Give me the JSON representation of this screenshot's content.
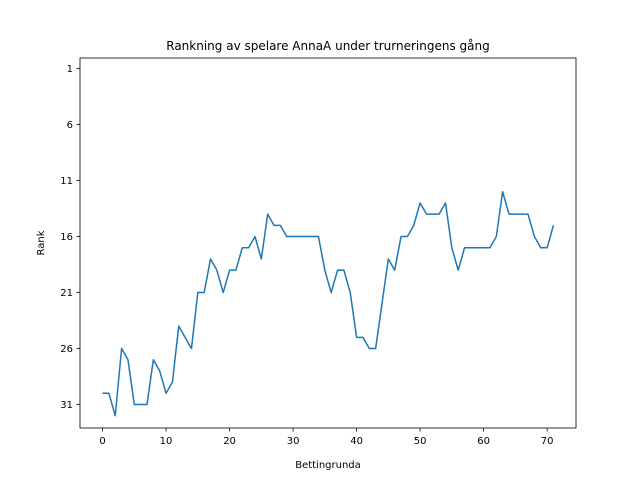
{
  "chart_data": {
    "type": "line",
    "title": "Rankning av spelare AnnaA under trurneringens gång",
    "xlabel": "Bettingrunda",
    "ylabel": "Rank",
    "xlim": [
      -3.55,
      74.55
    ],
    "ylim": [
      33.1,
      0.05
    ],
    "y_inverted": true,
    "grid": false,
    "xticks": [
      0,
      10,
      20,
      30,
      40,
      50,
      60,
      70
    ],
    "yticks": [
      1,
      6,
      11,
      16,
      21,
      26,
      31
    ],
    "line_color": "#1f77b4",
    "series": [
      {
        "x": [
          0,
          1,
          2,
          3,
          4,
          5,
          6,
          7,
          8,
          9,
          10,
          11,
          12,
          13,
          14,
          15,
          16,
          17,
          18,
          19,
          20,
          21,
          22,
          23,
          24,
          25,
          26,
          27,
          28,
          29,
          30,
          31,
          32,
          33,
          34,
          35,
          36,
          37,
          38,
          39,
          40,
          41,
          42,
          43,
          44,
          45,
          46,
          47,
          48,
          49,
          50,
          51,
          52,
          53,
          54,
          55,
          56,
          57,
          58,
          59,
          60,
          61,
          62,
          63,
          64,
          65,
          66,
          67,
          68,
          69,
          70,
          71
        ],
        "y": [
          30,
          30,
          32,
          26,
          27,
          31,
          31,
          31,
          27,
          28,
          30,
          29,
          24,
          25,
          26,
          21,
          21,
          18,
          19,
          21,
          19,
          19,
          17,
          17,
          16,
          18,
          14,
          15,
          15,
          16,
          16,
          16,
          16,
          16,
          16,
          19,
          21,
          19,
          19,
          21,
          25,
          25,
          26,
          26,
          22,
          18,
          19,
          16,
          16,
          15,
          13,
          14,
          14,
          14,
          13,
          17,
          19,
          17,
          17,
          17,
          17,
          17,
          16,
          12,
          14,
          14,
          14,
          14,
          16,
          17,
          17,
          15
        ]
      }
    ]
  }
}
